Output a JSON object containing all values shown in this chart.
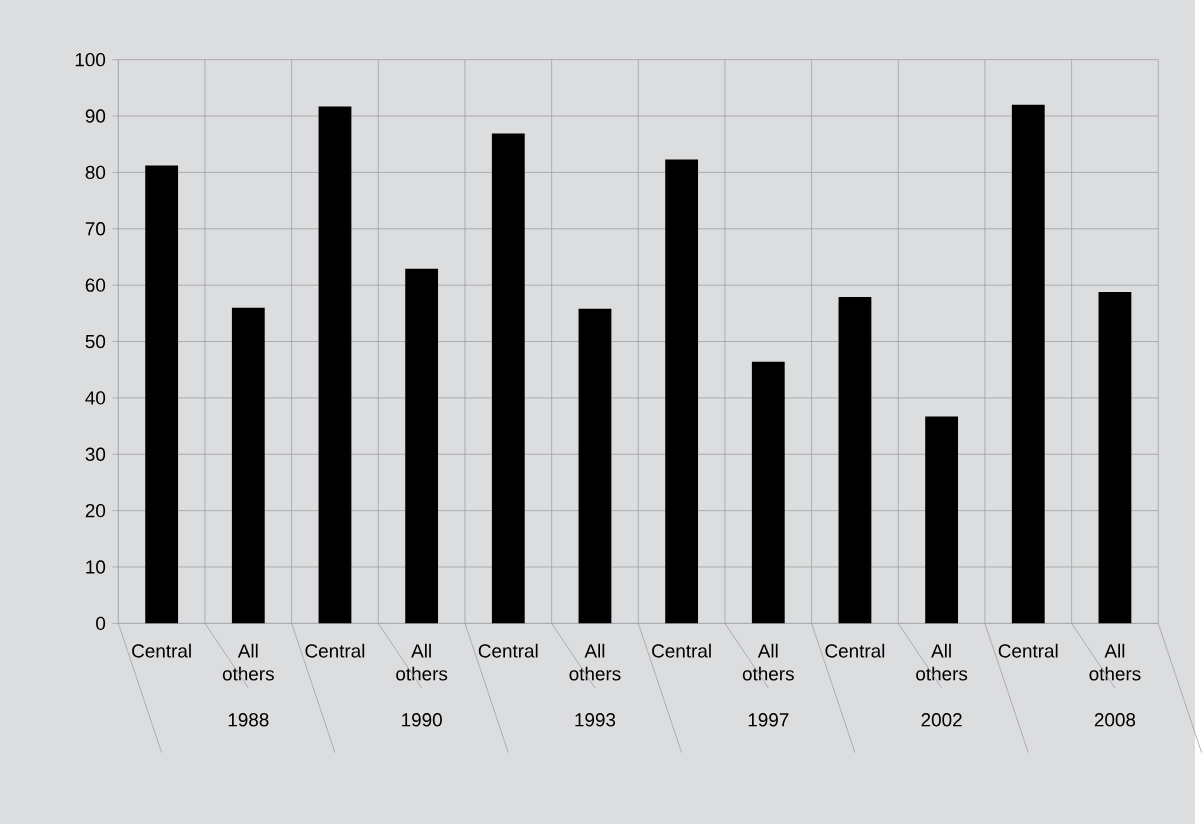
{
  "chart_data": {
    "type": "bar",
    "categories": [
      "Central",
      "All others",
      "Central",
      "All others",
      "Central",
      "All others",
      "Central",
      "All others",
      "Central",
      "All others",
      "Central",
      "All others"
    ],
    "values": [
      81.2,
      56.0,
      91.7,
      62.9,
      86.9,
      55.8,
      82.3,
      46.4,
      57.9,
      36.7,
      92.0,
      58.8
    ],
    "color": "#000000",
    "ylim": [
      0,
      100
    ],
    "yticks": [
      0,
      10,
      20,
      30,
      40,
      50,
      60,
      70,
      80,
      90,
      100
    ],
    "grid": true,
    "annotations": [
      "1988",
      "1990",
      "1993",
      "1997",
      "2002",
      "2008"
    ]
  }
}
